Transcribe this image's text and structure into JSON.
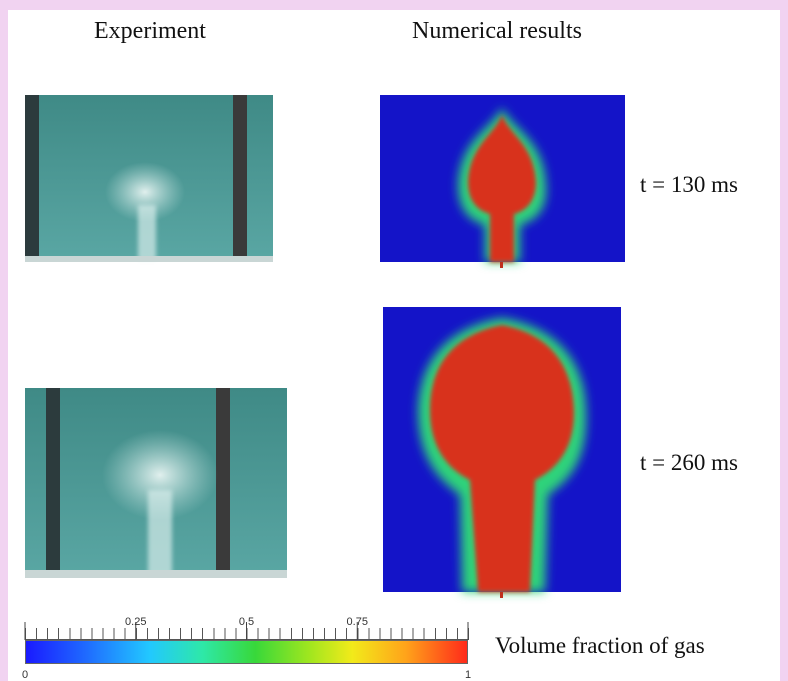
{
  "headers": {
    "experiment": "Experiment",
    "numerical": "Numerical results"
  },
  "rows": [
    {
      "time": "t = 130 ms"
    },
    {
      "time": "t = 260 ms"
    }
  ],
  "colorbar": {
    "label": "Volume fraction of gas",
    "range": [
      0,
      1
    ],
    "ticks": [
      0,
      0.25,
      0.5,
      0.75,
      1
    ]
  }
}
